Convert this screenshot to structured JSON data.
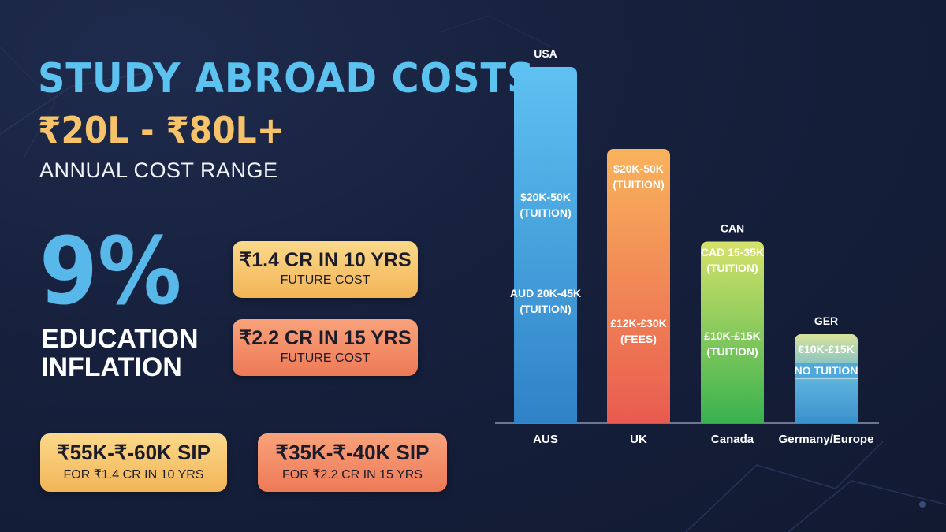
{
  "header": {
    "title": "STUDY ABROAD COSTS",
    "range": "₹20L - ₹80L+",
    "range_label": "ANNUAL COST RANGE"
  },
  "inflation": {
    "percent": "9%",
    "label": "EDUCATION INFLATION"
  },
  "future_costs": [
    {
      "main": "₹1.4 CR IN 10 YRS",
      "sub": "FUTURE COST"
    },
    {
      "main": "₹2.2 CR IN 15 YRS",
      "sub": "FUTURE COST"
    }
  ],
  "sips": [
    {
      "main": "₹55K-₹-60K SIP",
      "sub": "FOR ₹1.4 CR IN 10 YRS"
    },
    {
      "main": "₹35K-₹-40K SIP",
      "sub": "FOR ₹2.2 CR IN 15 YRS"
    }
  ],
  "colors": {
    "title": "#5cc3f0",
    "range": "#f6c36a",
    "usa_bar": [
      "#5fc1f2",
      "#2f82c6"
    ],
    "uk_bar": [
      "#f9b35c",
      "#e95b50"
    ],
    "canada_bar": [
      "#d6e26a",
      "#39b24f"
    ],
    "germany_bar": [
      "#d8e39a",
      "#3c92cc"
    ]
  },
  "chart_data": {
    "type": "bar",
    "categories": [
      "AUS",
      "UK",
      "Canada",
      "Germany/Europe"
    ],
    "top_labels": [
      "USA",
      "",
      "CAN",
      "GER"
    ],
    "values": [
      100,
      77,
      51,
      25
    ],
    "value_unit": "relative bar height (no axis shown)",
    "segment_labels": [
      [
        "$20K-50K",
        "(TUITION)",
        "AUD 20K-45K",
        "(TUITION)"
      ],
      [
        "$20K-50K",
        "(TUITION)",
        "£12K-£30K",
        "(FEES)"
      ],
      [
        "CAD 15-35K",
        "(TUITION)",
        "£10K-£15K",
        "(TUITION)"
      ],
      [
        "€10K-£15K",
        "NO TUITION"
      ]
    ],
    "xlabel": "",
    "ylabel": "",
    "grid": false,
    "legend": "none"
  }
}
